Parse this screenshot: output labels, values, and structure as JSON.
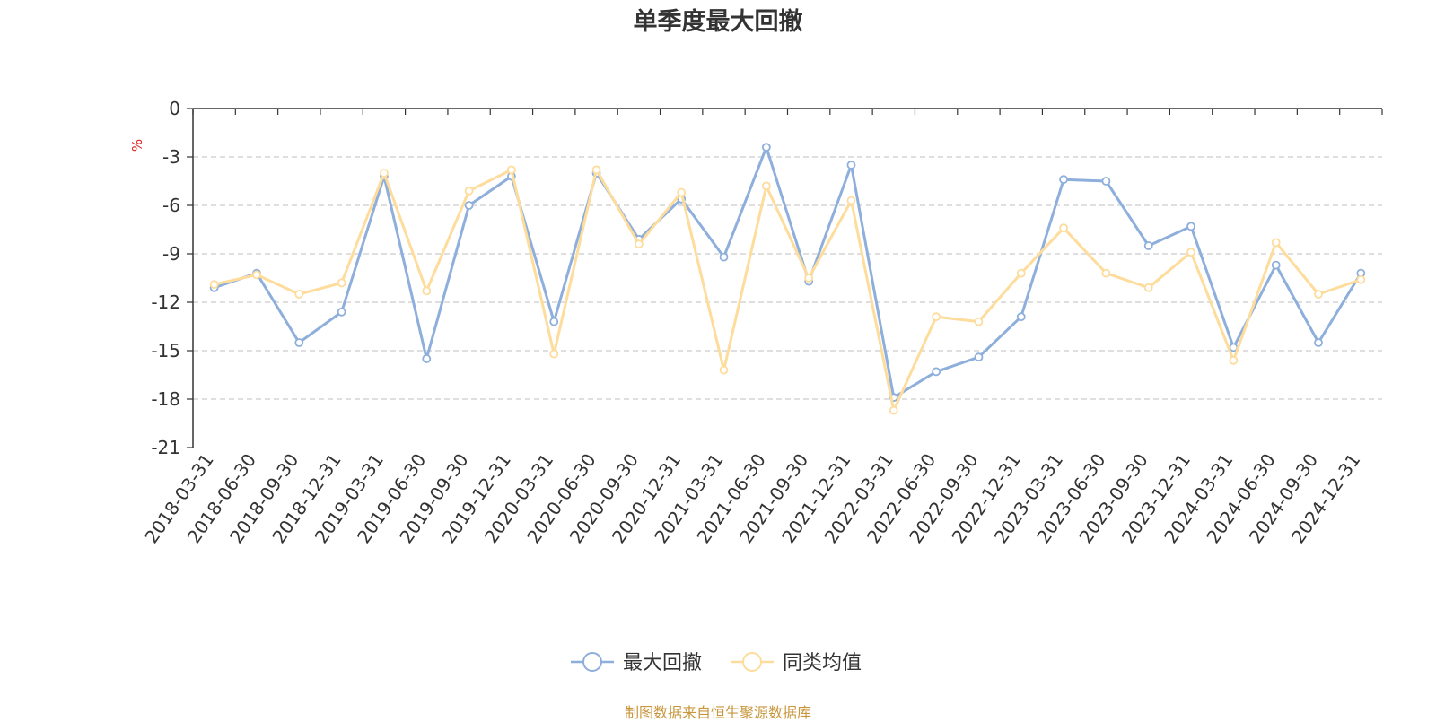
{
  "chart_data": {
    "type": "line",
    "title": "单季度最大回撤",
    "ylabel": "%",
    "ylim": [
      -21,
      0
    ],
    "yticks": [
      0,
      -3,
      -6,
      -9,
      -12,
      -15,
      -18,
      -21
    ],
    "grid": true,
    "legend_position": "bottom",
    "categories": [
      "2018-03-31",
      "2018-06-30",
      "2018-09-30",
      "2018-12-31",
      "2019-03-31",
      "2019-06-30",
      "2019-09-30",
      "2019-12-31",
      "2020-03-31",
      "2020-06-30",
      "2020-09-30",
      "2020-12-31",
      "2021-03-31",
      "2021-06-30",
      "2021-09-30",
      "2021-12-31",
      "2022-03-31",
      "2022-06-30",
      "2022-09-30",
      "2022-12-31",
      "2023-03-31",
      "2023-06-30",
      "2023-09-30",
      "2023-12-31",
      "2024-03-31",
      "2024-06-30",
      "2024-09-30",
      "2024-12-31"
    ],
    "series": [
      {
        "name": "最大回撤",
        "color": "#8eaedc",
        "values": [
          -11.1,
          -10.2,
          -14.5,
          -12.6,
          -4.2,
          -15.5,
          -6.0,
          -4.2,
          -13.2,
          -4.0,
          -8.1,
          -5.6,
          -9.2,
          -2.4,
          -10.7,
          -3.5,
          -17.9,
          -16.3,
          -15.4,
          -12.9,
          -4.4,
          -4.5,
          -8.5,
          -7.3,
          -14.8,
          -9.7,
          -14.5,
          -10.2
        ]
      },
      {
        "name": "同类均值",
        "color": "#fddc9c",
        "values": [
          -10.9,
          -10.3,
          -11.5,
          -10.8,
          -4.0,
          -11.3,
          -5.1,
          -3.8,
          -15.2,
          -3.8,
          -8.4,
          -5.2,
          -16.2,
          -4.8,
          -10.5,
          -5.7,
          -18.7,
          -12.9,
          -13.2,
          -10.2,
          -7.4,
          -10.2,
          -11.1,
          -8.9,
          -15.6,
          -8.3,
          -11.5,
          -10.6
        ]
      }
    ]
  },
  "source_note": "制图数据来自恒生聚源数据库"
}
